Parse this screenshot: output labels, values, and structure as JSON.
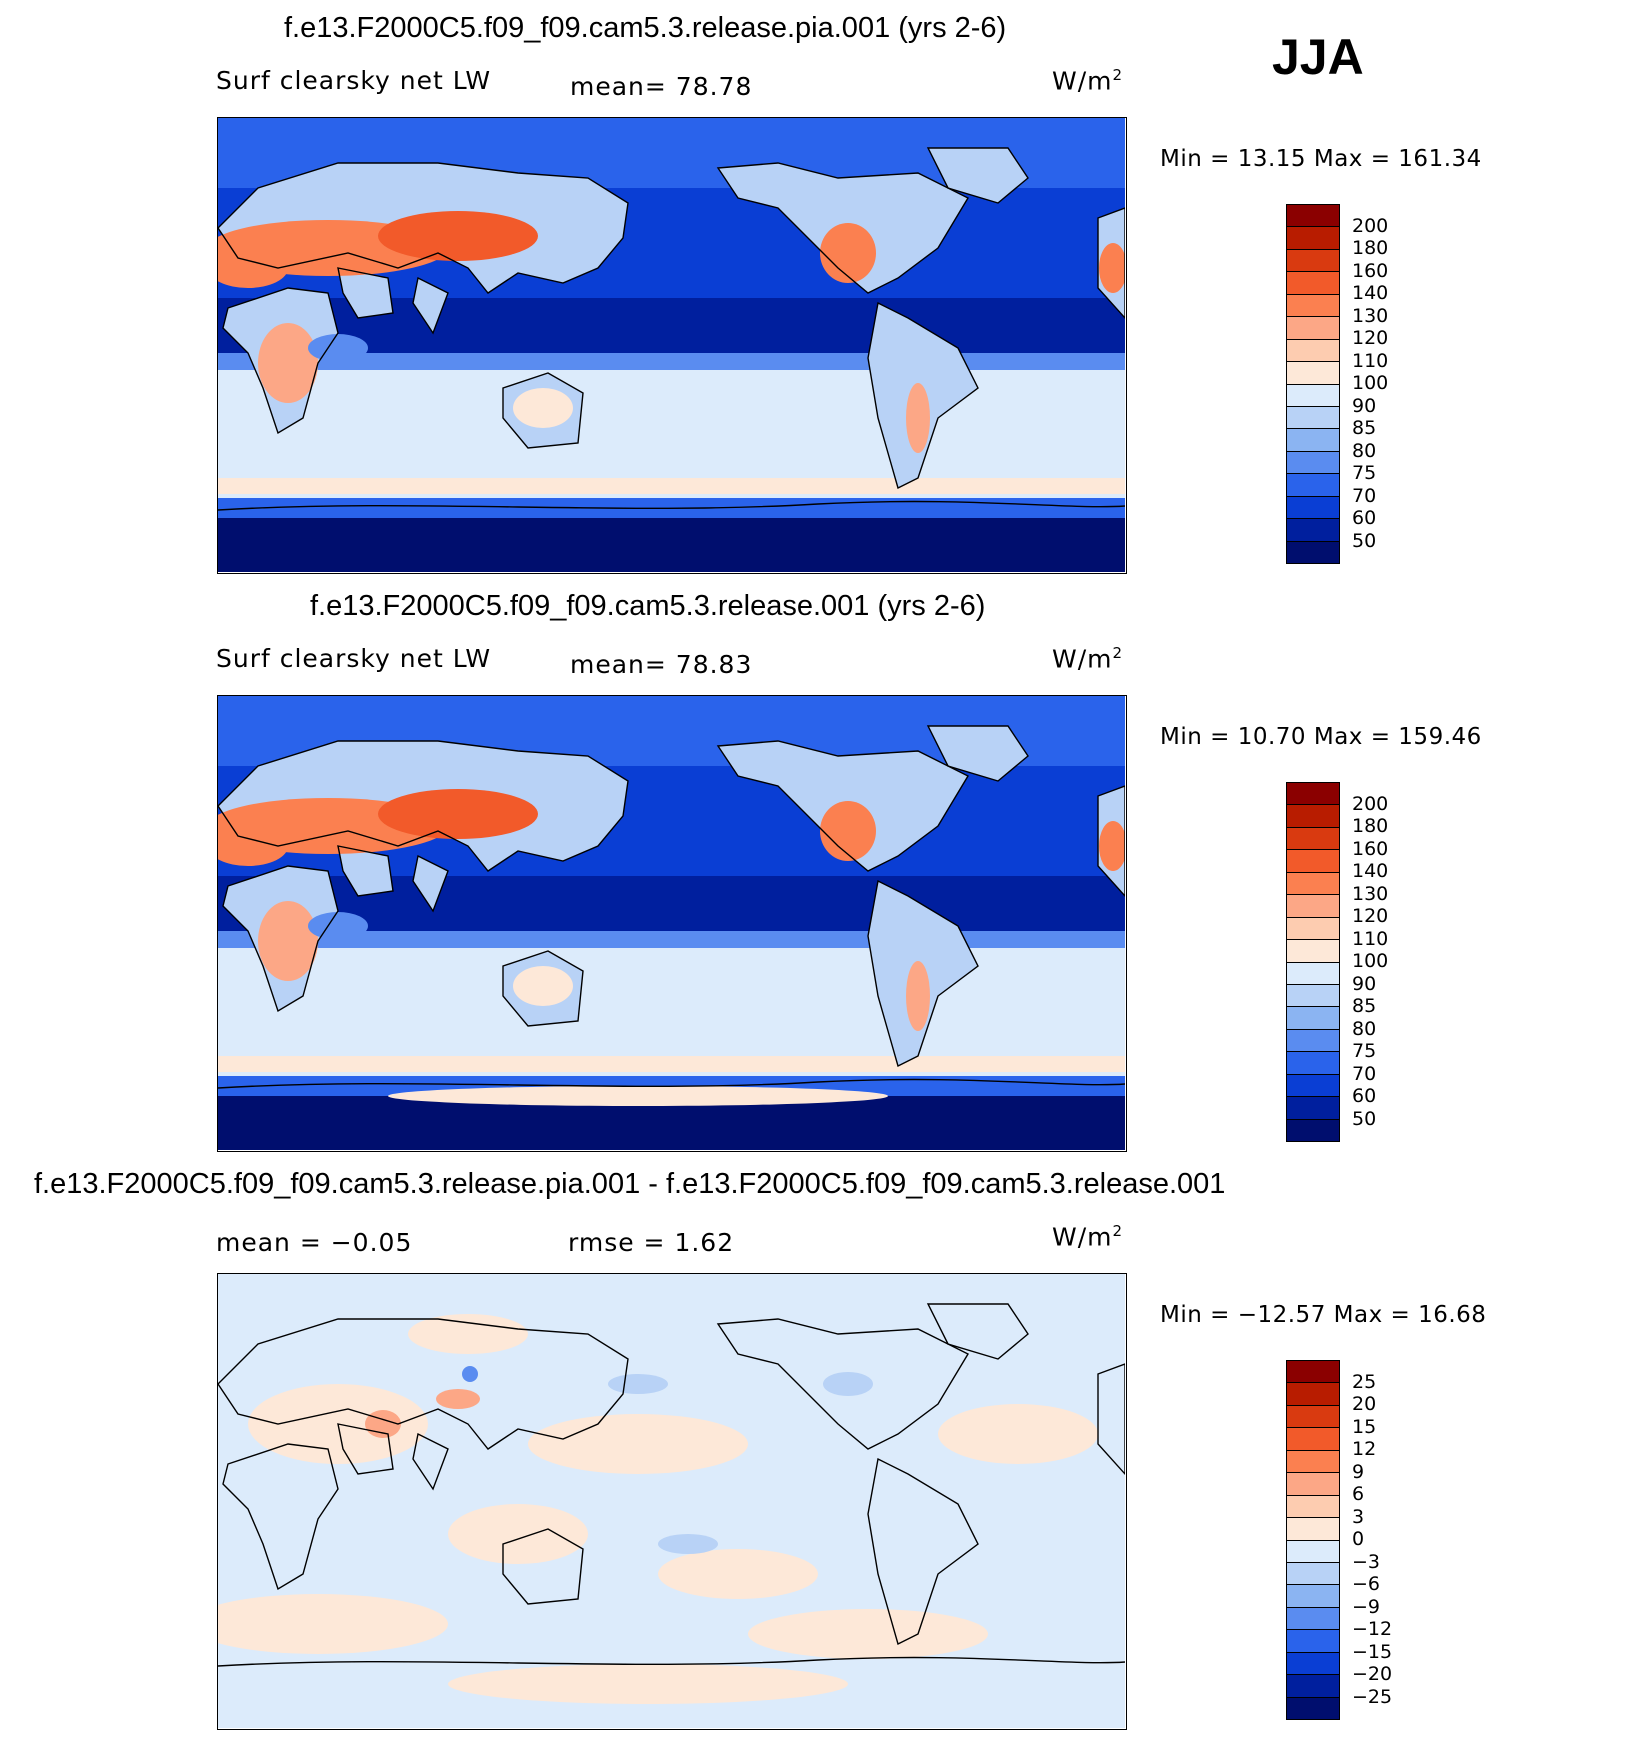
{
  "season": "JJA",
  "panels": [
    {
      "title": "f.e13.F2000C5.f09_f09.cam5.3.release.pia.001 (yrs 2-6)",
      "left_label": "Surf clearsky net LW",
      "center_label": "mean=  78.78",
      "units": "W/m",
      "units_sup": "2",
      "minmax": "Min =   13.15 Max = 161.34",
      "colorbar_labels": [
        "200",
        "180",
        "160",
        "140",
        "130",
        "120",
        "110",
        "100",
        "90",
        "85",
        "80",
        "75",
        "70",
        "60",
        "50"
      ],
      "variant": "a"
    },
    {
      "title": "f.e13.F2000C5.f09_f09.cam5.3.release.001 (yrs 2-6)",
      "left_label": "Surf clearsky net LW",
      "center_label": "mean=  78.83",
      "units": "W/m",
      "units_sup": "2",
      "minmax": "Min =   10.70 Max = 159.46",
      "colorbar_labels": [
        "200",
        "180",
        "160",
        "140",
        "130",
        "120",
        "110",
        "100",
        "90",
        "85",
        "80",
        "75",
        "70",
        "60",
        "50"
      ],
      "variant": "b"
    },
    {
      "title": "f.e13.F2000C5.f09_f09.cam5.3.release.pia.001 - f.e13.F2000C5.f09_f09.cam5.3.release.001",
      "left_label": "mean =  −0.05",
      "center_label": "rmse =   1.62",
      "units": "W/m",
      "units_sup": "2",
      "minmax": "Min = −12.57 Max =   16.68",
      "colorbar_labels": [
        "25",
        "20",
        "15",
        "12",
        "9",
        "6",
        "3",
        "0",
        "−3",
        "−6",
        "−9",
        "−12",
        "−15",
        "−20",
        "−25"
      ],
      "variant": "diff"
    }
  ],
  "colors": {
    "abs_scale": [
      "#8b0000",
      "#b81c00",
      "#d93a10",
      "#f25a2a",
      "#fb8050",
      "#fca786",
      "#fdccb0",
      "#fde8d8",
      "#dcebfb",
      "#b8d2f6",
      "#8bb4f2",
      "#5a8cf0",
      "#2a63eb",
      "#0a3ed4",
      "#001f9e",
      "#000e6e"
    ],
    "diff_scale": [
      "#8b0000",
      "#b81c00",
      "#d93a10",
      "#f25a2a",
      "#fb8050",
      "#fca786",
      "#fdccb0",
      "#fde8d8",
      "#dcebfb",
      "#b8d2f6",
      "#8bb4f2",
      "#5a8cf0",
      "#2a63eb",
      "#0a3ed4",
      "#001f9e",
      "#000e6e"
    ]
  }
}
